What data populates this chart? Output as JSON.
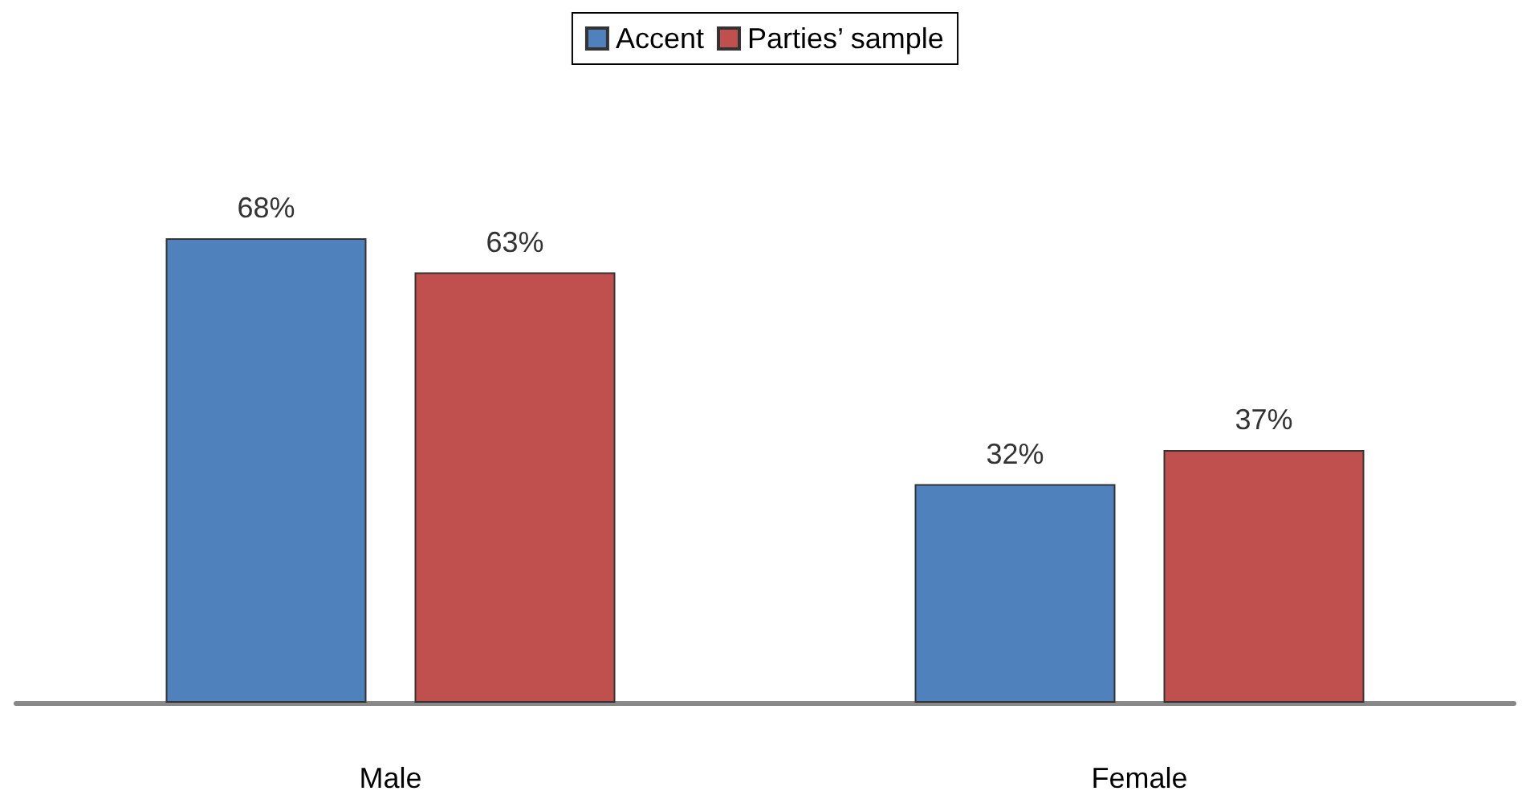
{
  "chart_data": {
    "type": "bar",
    "categories": [
      "Male",
      "Female"
    ],
    "series": [
      {
        "name": "Accent",
        "color": "#4f81bd",
        "values": [
          68,
          32
        ],
        "value_labels": [
          "68%",
          "32%"
        ]
      },
      {
        "name": "Parties’ sample",
        "color": "#c0504d",
        "values": [
          63,
          37
        ],
        "value_labels": [
          "63%",
          "37%"
        ]
      }
    ],
    "legend": "top",
    "grid": false
  }
}
